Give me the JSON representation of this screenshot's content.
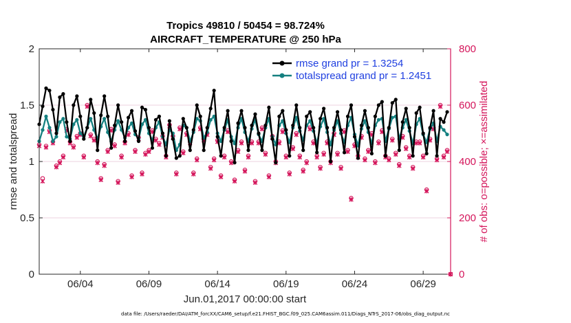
{
  "chart_data": {
    "type": "line",
    "title": "Tropics 49810 / 50454 = 98.724%",
    "subtitle": "AIRCRAFT_TEMPERATURE @ 250 hPa",
    "xlabel": "Jun.01,2017 00:00:00 start",
    "ylabel_left": "rmse and totalspread",
    "ylabel_right": "# of obs: o=possible; ×=assimilated",
    "footer": "data file: /Users/raeder/DAI/ATM_forcXX/CAM6_setup/f.e21.FHIST_BGC.f09_025.CAM6assim.011/Diags_NTrS_2017-06/obs_diag_output.nc",
    "x_range": [
      1,
      31
    ],
    "y_left_range": [
      0,
      2
    ],
    "y_right_range": [
      0,
      800
    ],
    "x_ticks": [
      {
        "value": 4,
        "label": "06/04"
      },
      {
        "value": 9,
        "label": "06/09"
      },
      {
        "value": 14,
        "label": "06/14"
      },
      {
        "value": 19,
        "label": "06/19"
      },
      {
        "value": 24,
        "label": "06/24"
      },
      {
        "value": 29,
        "label": "06/29"
      }
    ],
    "y_left_ticks": [
      "0",
      "0.5",
      "1",
      "1.5",
      "2"
    ],
    "y_right_ticks": [
      "0",
      "200",
      "400",
      "600",
      "800"
    ],
    "grid": true,
    "legend_position": "top-right",
    "colors": {
      "rmse": "#000000",
      "totalspread": "#148080",
      "obs": "#d4145a",
      "axis_right": "#d4145a",
      "legend_text": "#1f3fe0",
      "grid": "#e8c0d4"
    },
    "series": [
      {
        "name": "rmse",
        "legend_label": "rmse grand pr = 1.3254",
        "x": [
          1.0,
          1.25,
          1.5,
          1.75,
          2.0,
          2.25,
          2.5,
          2.75,
          3.0,
          3.25,
          3.5,
          3.75,
          4.0,
          4.25,
          4.5,
          4.75,
          5.0,
          5.25,
          5.5,
          5.75,
          6.0,
          6.25,
          6.5,
          6.75,
          7.0,
          7.25,
          7.5,
          7.75,
          8.0,
          8.25,
          8.5,
          8.75,
          9.0,
          9.25,
          9.5,
          9.75,
          10.0,
          10.25,
          10.5,
          10.75,
          11.0,
          11.25,
          11.5,
          11.75,
          12.0,
          12.25,
          12.5,
          12.75,
          13.0,
          13.25,
          13.5,
          13.75,
          14.0,
          14.25,
          14.5,
          14.75,
          15.0,
          15.25,
          15.5,
          15.75,
          16.0,
          16.25,
          16.5,
          16.75,
          17.0,
          17.25,
          17.5,
          17.75,
          18.0,
          18.25,
          18.5,
          18.75,
          19.0,
          19.25,
          19.5,
          19.75,
          20.0,
          20.25,
          20.5,
          20.75,
          21.0,
          21.25,
          21.5,
          21.75,
          22.0,
          22.25,
          22.5,
          22.75,
          23.0,
          23.25,
          23.5,
          23.75,
          24.0,
          24.25,
          24.5,
          24.75,
          25.0,
          25.25,
          25.5,
          25.75,
          26.0,
          26.25,
          26.5,
          26.75,
          27.0,
          27.25,
          27.5,
          27.75,
          28.0,
          28.25,
          28.5,
          28.75,
          29.0,
          29.25,
          29.5,
          29.75,
          30.0,
          30.25,
          30.5,
          30.75
        ],
        "values": [
          1.33,
          1.49,
          1.65,
          1.63,
          1.46,
          1.25,
          1.57,
          1.6,
          1.35,
          1.18,
          1.5,
          1.58,
          1.4,
          1.2,
          1.3,
          1.55,
          1.43,
          1.1,
          1.41,
          1.58,
          1.4,
          1.12,
          1.32,
          1.5,
          1.35,
          1.18,
          1.39,
          1.45,
          1.27,
          1.18,
          1.48,
          1.46,
          1.3,
          1.12,
          1.37,
          1.4,
          1.25,
          1.05,
          1.36,
          1.2,
          1.03,
          1.05,
          1.38,
          1.3,
          1.1,
          1.28,
          1.5,
          1.4,
          1.1,
          1.3,
          1.47,
          1.63,
          1.22,
          1.05,
          1.3,
          1.45,
          1.18,
          0.99,
          1.34,
          1.45,
          1.3,
          1.1,
          1.32,
          1.42,
          1.25,
          1.1,
          1.32,
          1.48,
          1.2,
          0.99,
          1.4,
          1.45,
          1.28,
          1.05,
          1.32,
          1.5,
          1.3,
          1.1,
          1.4,
          1.44,
          1.3,
          1.08,
          1.38,
          1.47,
          1.3,
          1.0,
          1.3,
          1.44,
          1.28,
          1.08,
          1.4,
          1.5,
          1.22,
          1.03,
          1.32,
          1.45,
          1.3,
          1.07,
          1.4,
          1.5,
          1.53,
          1.05,
          1.3,
          1.52,
          1.55,
          1.1,
          1.35,
          1.47,
          1.3,
          1.05,
          1.43,
          1.48,
          1.25,
          1.07,
          1.3,
          1.45,
          1.05,
          1.38,
          1.35,
          1.44
        ]
      },
      {
        "name": "totalspread",
        "legend_label": "totalspread grand pr = 1.2451",
        "x": [
          1.0,
          1.25,
          1.5,
          1.75,
          2.0,
          2.25,
          2.5,
          2.75,
          3.0,
          3.25,
          3.5,
          3.75,
          4.0,
          4.25,
          4.5,
          4.75,
          5.0,
          5.25,
          5.5,
          5.75,
          6.0,
          6.25,
          6.5,
          6.75,
          7.0,
          7.25,
          7.5,
          7.75,
          8.0,
          8.25,
          8.5,
          8.75,
          9.0,
          9.25,
          9.5,
          9.75,
          10.0,
          10.25,
          10.5,
          10.75,
          11.0,
          11.25,
          11.5,
          11.75,
          12.0,
          12.25,
          12.5,
          12.75,
          13.0,
          13.25,
          13.5,
          13.75,
          14.0,
          14.25,
          14.5,
          14.75,
          15.0,
          15.25,
          15.5,
          15.75,
          16.0,
          16.25,
          16.5,
          16.75,
          17.0,
          17.25,
          17.5,
          17.75,
          18.0,
          18.25,
          18.5,
          18.75,
          19.0,
          19.25,
          19.5,
          19.75,
          20.0,
          20.25,
          20.5,
          20.75,
          21.0,
          21.25,
          21.5,
          21.75,
          22.0,
          22.25,
          22.5,
          22.75,
          23.0,
          23.25,
          23.5,
          23.75,
          24.0,
          24.25,
          24.5,
          24.75,
          25.0,
          25.25,
          25.5,
          25.75,
          26.0,
          26.25,
          26.5,
          26.75,
          27.0,
          27.25,
          27.5,
          27.75,
          28.0,
          28.25,
          28.5,
          28.75,
          29.0,
          29.25,
          29.5,
          29.75,
          30.0,
          30.25,
          30.5,
          30.75
        ],
        "values": [
          1.18,
          1.28,
          1.4,
          1.3,
          1.18,
          1.22,
          1.35,
          1.38,
          1.22,
          1.2,
          1.33,
          1.37,
          1.25,
          1.22,
          1.3,
          1.38,
          1.28,
          1.2,
          1.31,
          1.38,
          1.26,
          1.18,
          1.28,
          1.36,
          1.28,
          1.21,
          1.3,
          1.34,
          1.24,
          1.2,
          1.33,
          1.37,
          1.25,
          1.19,
          1.3,
          1.35,
          1.22,
          1.15,
          1.28,
          1.25,
          1.1,
          1.15,
          1.32,
          1.3,
          1.18,
          1.26,
          1.38,
          1.36,
          1.21,
          1.26,
          1.37,
          1.4,
          1.25,
          1.18,
          1.28,
          1.37,
          1.22,
          1.16,
          1.3,
          1.38,
          1.26,
          1.18,
          1.29,
          1.37,
          1.24,
          1.18,
          1.3,
          1.38,
          1.22,
          1.15,
          1.32,
          1.36,
          1.25,
          1.17,
          1.3,
          1.39,
          1.27,
          1.19,
          1.32,
          1.36,
          1.27,
          1.16,
          1.31,
          1.38,
          1.26,
          1.15,
          1.28,
          1.36,
          1.25,
          1.17,
          1.32,
          1.39,
          1.24,
          1.14,
          1.29,
          1.36,
          1.26,
          1.16,
          1.32,
          1.37,
          1.38,
          1.18,
          1.29,
          1.39,
          1.4,
          1.2,
          1.3,
          1.37,
          1.27,
          1.16,
          1.33,
          1.38,
          1.24,
          1.17,
          1.29,
          1.34,
          1.18,
          1.31,
          1.28,
          1.24
        ]
      }
    ],
    "obs_possible": {
      "name": "obs possible (o)",
      "x": [
        1.0,
        1.25,
        1.5,
        1.75,
        2.0,
        2.25,
        2.5,
        2.75,
        3.0,
        3.25,
        3.5,
        3.75,
        4.0,
        4.25,
        4.5,
        4.75,
        5.0,
        5.25,
        5.5,
        5.75,
        6.0,
        6.25,
        6.5,
        6.75,
        7.0,
        7.25,
        7.5,
        7.75,
        8.0,
        8.25,
        8.5,
        8.75,
        9.0,
        9.25,
        9.5,
        9.75,
        10.0,
        10.25,
        10.5,
        10.75,
        11.0,
        11.25,
        11.5,
        11.75,
        12.0,
        12.25,
        12.5,
        12.75,
        13.0,
        13.25,
        13.5,
        13.75,
        14.0,
        14.25,
        14.5,
        14.75,
        15.0,
        15.25,
        15.5,
        15.75,
        16.0,
        16.25,
        16.5,
        16.75,
        17.0,
        17.25,
        17.5,
        17.75,
        18.0,
        18.25,
        18.5,
        18.75,
        19.0,
        19.25,
        19.5,
        19.75,
        20.0,
        20.25,
        20.5,
        20.75,
        21.0,
        21.25,
        21.5,
        21.75,
        22.0,
        22.25,
        22.5,
        22.75,
        23.0,
        23.25,
        23.5,
        23.75,
        24.0,
        24.25,
        24.5,
        24.75,
        25.0,
        25.25,
        25.5,
        25.75,
        26.0,
        26.25,
        26.5,
        26.75,
        27.0,
        27.25,
        27.5,
        27.75,
        28.0,
        28.25,
        28.5,
        28.75,
        29.0,
        29.25,
        29.5,
        29.75,
        30.0,
        30.25,
        30.5,
        30.75,
        31.0
      ],
      "values": [
        460,
        340,
        455,
        510,
        470,
        385,
        400,
        420,
        515,
        470,
        455,
        490,
        500,
        420,
        600,
        495,
        480,
        400,
        340,
        390,
        440,
        515,
        460,
        330,
        420,
        470,
        500,
        350,
        440,
        485,
        360,
        430,
        440,
        510,
        480,
        465,
        490,
        420,
        530,
        490,
        360,
        520,
        435,
        500,
        470,
        360,
        410,
        520,
        480,
        500,
        380,
        410,
        475,
        350,
        420,
        510,
        400,
        335,
        440,
        470,
        370,
        420,
        470,
        330,
        470,
        520,
        430,
        350,
        490,
        400,
        470,
        510,
        420,
        360,
        450,
        500,
        420,
        370,
        400,
        520,
        470,
        420,
        380,
        430,
        470,
        400,
        500,
        430,
        380,
        510,
        440,
        270,
        460,
        420,
        490,
        410,
        440,
        500,
        400,
        470,
        510,
        420,
        410,
        480,
        430,
        390,
        490,
        450,
        420,
        380,
        470,
        470,
        420,
        300,
        480,
        520,
        410,
        600,
        420,
        440,
        0
      ],
      "marker": "o"
    },
    "obs_assimilated": {
      "name": "obs assimilated (×)",
      "x": [
        1.0,
        1.25,
        1.5,
        1.75,
        2.0,
        2.25,
        2.5,
        2.75,
        3.0,
        3.25,
        3.5,
        3.75,
        4.0,
        4.25,
        4.5,
        4.75,
        5.0,
        5.25,
        5.5,
        5.75,
        6.0,
        6.25,
        6.5,
        6.75,
        7.0,
        7.25,
        7.5,
        7.75,
        8.0,
        8.25,
        8.5,
        8.75,
        9.0,
        9.25,
        9.5,
        9.75,
        10.0,
        10.25,
        10.5,
        10.75,
        11.0,
        11.25,
        11.5,
        11.75,
        12.0,
        12.25,
        12.5,
        12.75,
        13.0,
        13.25,
        13.5,
        13.75,
        14.0,
        14.25,
        14.5,
        14.75,
        15.0,
        15.25,
        15.5,
        15.75,
        16.0,
        16.25,
        16.5,
        16.75,
        17.0,
        17.25,
        17.5,
        17.75,
        18.0,
        18.25,
        18.5,
        18.75,
        19.0,
        19.25,
        19.5,
        19.75,
        20.0,
        20.25,
        20.5,
        20.75,
        21.0,
        21.25,
        21.5,
        21.75,
        22.0,
        22.25,
        22.5,
        22.75,
        23.0,
        23.25,
        23.5,
        23.75,
        24.0,
        24.25,
        24.5,
        24.75,
        25.0,
        25.25,
        25.5,
        25.75,
        26.0,
        26.25,
        26.5,
        26.75,
        27.0,
        27.25,
        27.5,
        27.75,
        28.0,
        28.25,
        28.5,
        28.75,
        29.0,
        29.25,
        29.5,
        29.75,
        30.0,
        30.25,
        30.5,
        30.75,
        31.0
      ],
      "values": [
        455,
        330,
        450,
        505,
        465,
        380,
        395,
        415,
        510,
        465,
        450,
        485,
        495,
        415,
        595,
        490,
        475,
        395,
        335,
        385,
        435,
        510,
        455,
        325,
        415,
        465,
        495,
        345,
        435,
        480,
        355,
        425,
        435,
        505,
        475,
        460,
        485,
        415,
        525,
        485,
        355,
        515,
        430,
        495,
        465,
        355,
        405,
        515,
        475,
        495,
        375,
        405,
        470,
        345,
        415,
        505,
        395,
        330,
        435,
        465,
        365,
        415,
        465,
        325,
        465,
        515,
        425,
        345,
        485,
        395,
        465,
        505,
        415,
        355,
        445,
        495,
        415,
        365,
        395,
        515,
        465,
        415,
        375,
        425,
        465,
        395,
        495,
        425,
        375,
        505,
        435,
        265,
        455,
        415,
        485,
        405,
        435,
        495,
        395,
        465,
        505,
        415,
        405,
        475,
        425,
        385,
        485,
        445,
        415,
        375,
        465,
        465,
        415,
        295,
        475,
        515,
        405,
        595,
        415,
        435,
        0
      ],
      "marker": "x"
    }
  }
}
